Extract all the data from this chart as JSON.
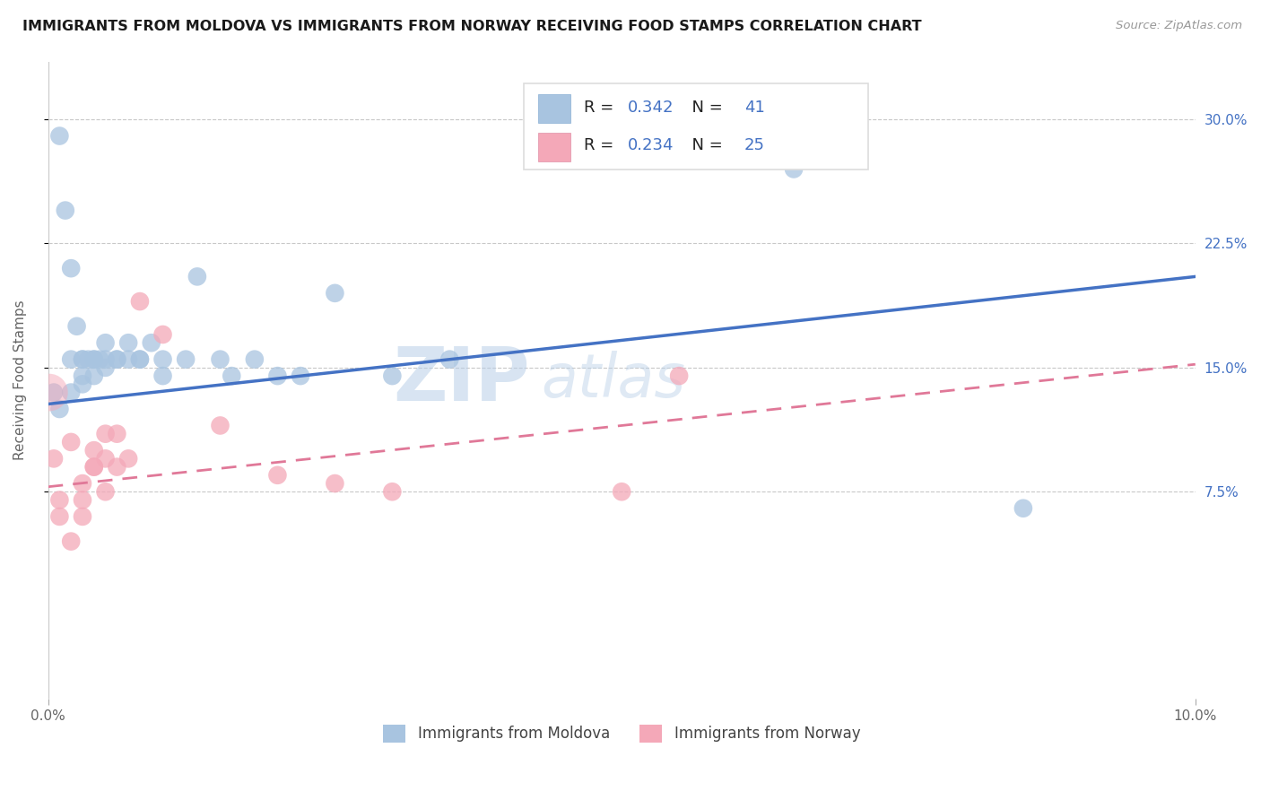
{
  "title": "IMMIGRANTS FROM MOLDOVA VS IMMIGRANTS FROM NORWAY RECEIVING FOOD STAMPS CORRELATION CHART",
  "source": "Source: ZipAtlas.com",
  "ylabel": "Receiving Food Stamps",
  "xlim": [
    0.0,
    0.1
  ],
  "ylim": [
    -0.05,
    0.335
  ],
  "right_yticks": [
    0.075,
    0.15,
    0.225,
    0.3
  ],
  "right_yticklabels": [
    "7.5%",
    "15.0%",
    "22.5%",
    "30.0%"
  ],
  "moldova_R": 0.342,
  "moldova_N": 41,
  "norway_R": 0.234,
  "norway_N": 25,
  "moldova_color": "#a8c4e0",
  "norway_color": "#f4a8b8",
  "moldova_line_color": "#4472c4",
  "norway_line_color": "#e07898",
  "watermark": "ZIPatlas",
  "moldova_line_x0": 0.0,
  "moldova_line_y0": 0.128,
  "moldova_line_x1": 0.1,
  "moldova_line_y1": 0.205,
  "norway_line_x0": 0.0,
  "norway_line_y0": 0.078,
  "norway_line_x1": 0.1,
  "norway_line_y1": 0.152,
  "moldova_scatter_x": [
    0.0005,
    0.001,
    0.001,
    0.0015,
    0.002,
    0.002,
    0.002,
    0.0025,
    0.003,
    0.003,
    0.003,
    0.003,
    0.0035,
    0.004,
    0.004,
    0.004,
    0.0045,
    0.005,
    0.005,
    0.005,
    0.006,
    0.006,
    0.007,
    0.007,
    0.008,
    0.008,
    0.009,
    0.01,
    0.01,
    0.012,
    0.013,
    0.015,
    0.016,
    0.018,
    0.02,
    0.022,
    0.025,
    0.03,
    0.035,
    0.065,
    0.085
  ],
  "moldova_scatter_y": [
    0.135,
    0.29,
    0.125,
    0.245,
    0.155,
    0.135,
    0.21,
    0.175,
    0.155,
    0.155,
    0.145,
    0.14,
    0.155,
    0.155,
    0.145,
    0.155,
    0.155,
    0.15,
    0.155,
    0.165,
    0.155,
    0.155,
    0.155,
    0.165,
    0.155,
    0.155,
    0.165,
    0.145,
    0.155,
    0.155,
    0.205,
    0.155,
    0.145,
    0.155,
    0.145,
    0.145,
    0.195,
    0.145,
    0.155,
    0.27,
    0.065
  ],
  "norway_scatter_x": [
    0.0005,
    0.001,
    0.001,
    0.002,
    0.002,
    0.003,
    0.003,
    0.003,
    0.004,
    0.004,
    0.004,
    0.005,
    0.005,
    0.005,
    0.006,
    0.006,
    0.007,
    0.008,
    0.01,
    0.015,
    0.02,
    0.025,
    0.03,
    0.05,
    0.055
  ],
  "norway_scatter_y": [
    0.095,
    0.06,
    0.07,
    0.105,
    0.045,
    0.08,
    0.07,
    0.06,
    0.09,
    0.09,
    0.1,
    0.095,
    0.075,
    0.11,
    0.11,
    0.09,
    0.095,
    0.19,
    0.17,
    0.115,
    0.085,
    0.08,
    0.075,
    0.075,
    0.145
  ],
  "background_color": "#ffffff",
  "grid_color": "#c8c8c8"
}
